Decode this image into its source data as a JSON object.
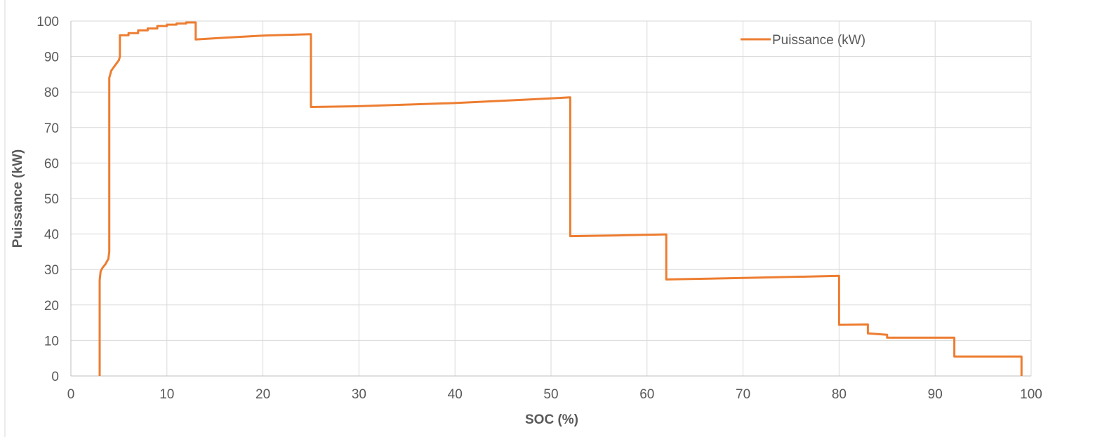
{
  "chart_data": {
    "type": "line",
    "title": "",
    "xlabel": "SOC (%)",
    "ylabel": "Puissance (kW)",
    "xlim": [
      0,
      100
    ],
    "ylim": [
      0,
      100
    ],
    "x_ticks": [
      0,
      10,
      20,
      30,
      40,
      50,
      60,
      70,
      80,
      90,
      100
    ],
    "y_ticks": [
      0,
      10,
      20,
      30,
      40,
      50,
      60,
      70,
      80,
      90,
      100
    ],
    "grid": true,
    "legend_position": "top-right",
    "series": [
      {
        "name": "Puissance (kW)",
        "color": "#ED7D31",
        "points": [
          [
            3.0,
            0
          ],
          [
            3.0,
            27
          ],
          [
            3.1,
            29.5
          ],
          [
            3.3,
            30.5
          ],
          [
            3.6,
            31.5
          ],
          [
            3.9,
            33
          ],
          [
            4.0,
            35
          ],
          [
            4.0,
            38
          ],
          [
            4.0,
            80
          ],
          [
            4.0,
            84
          ],
          [
            4.2,
            86
          ],
          [
            4.6,
            87.5
          ],
          [
            5.0,
            89
          ],
          [
            5.1,
            90
          ],
          [
            5.1,
            96
          ],
          [
            6.0,
            96
          ],
          [
            6.0,
            96.6
          ],
          [
            7.0,
            96.6
          ],
          [
            7.0,
            97.4
          ],
          [
            8.0,
            97.4
          ],
          [
            8.0,
            97.9
          ],
          [
            9.0,
            97.9
          ],
          [
            9.0,
            98.6
          ],
          [
            10.0,
            98.6
          ],
          [
            10.0,
            99.0
          ],
          [
            11.0,
            99.0
          ],
          [
            11.0,
            99.3
          ],
          [
            12.0,
            99.3
          ],
          [
            12.0,
            99.6
          ],
          [
            13.0,
            99.6
          ],
          [
            13.0,
            94.8
          ],
          [
            16.0,
            95.3
          ],
          [
            20.0,
            95.9
          ],
          [
            25.0,
            96.3
          ],
          [
            25.0,
            75.8
          ],
          [
            30.0,
            76.0
          ],
          [
            40.0,
            76.9
          ],
          [
            50.0,
            78.2
          ],
          [
            52.0,
            78.5
          ],
          [
            52.0,
            39.4
          ],
          [
            57.0,
            39.6
          ],
          [
            62.0,
            39.9
          ],
          [
            62.0,
            27.2
          ],
          [
            70.0,
            27.6
          ],
          [
            80.0,
            28.2
          ],
          [
            80.0,
            14.4
          ],
          [
            83.0,
            14.5
          ],
          [
            83.0,
            12.0
          ],
          [
            84.0,
            11.8
          ],
          [
            85.0,
            11.6
          ],
          [
            85.0,
            10.8
          ],
          [
            92.0,
            10.8
          ],
          [
            92.0,
            5.5
          ],
          [
            99.0,
            5.5
          ],
          [
            99.0,
            0
          ]
        ]
      }
    ]
  }
}
